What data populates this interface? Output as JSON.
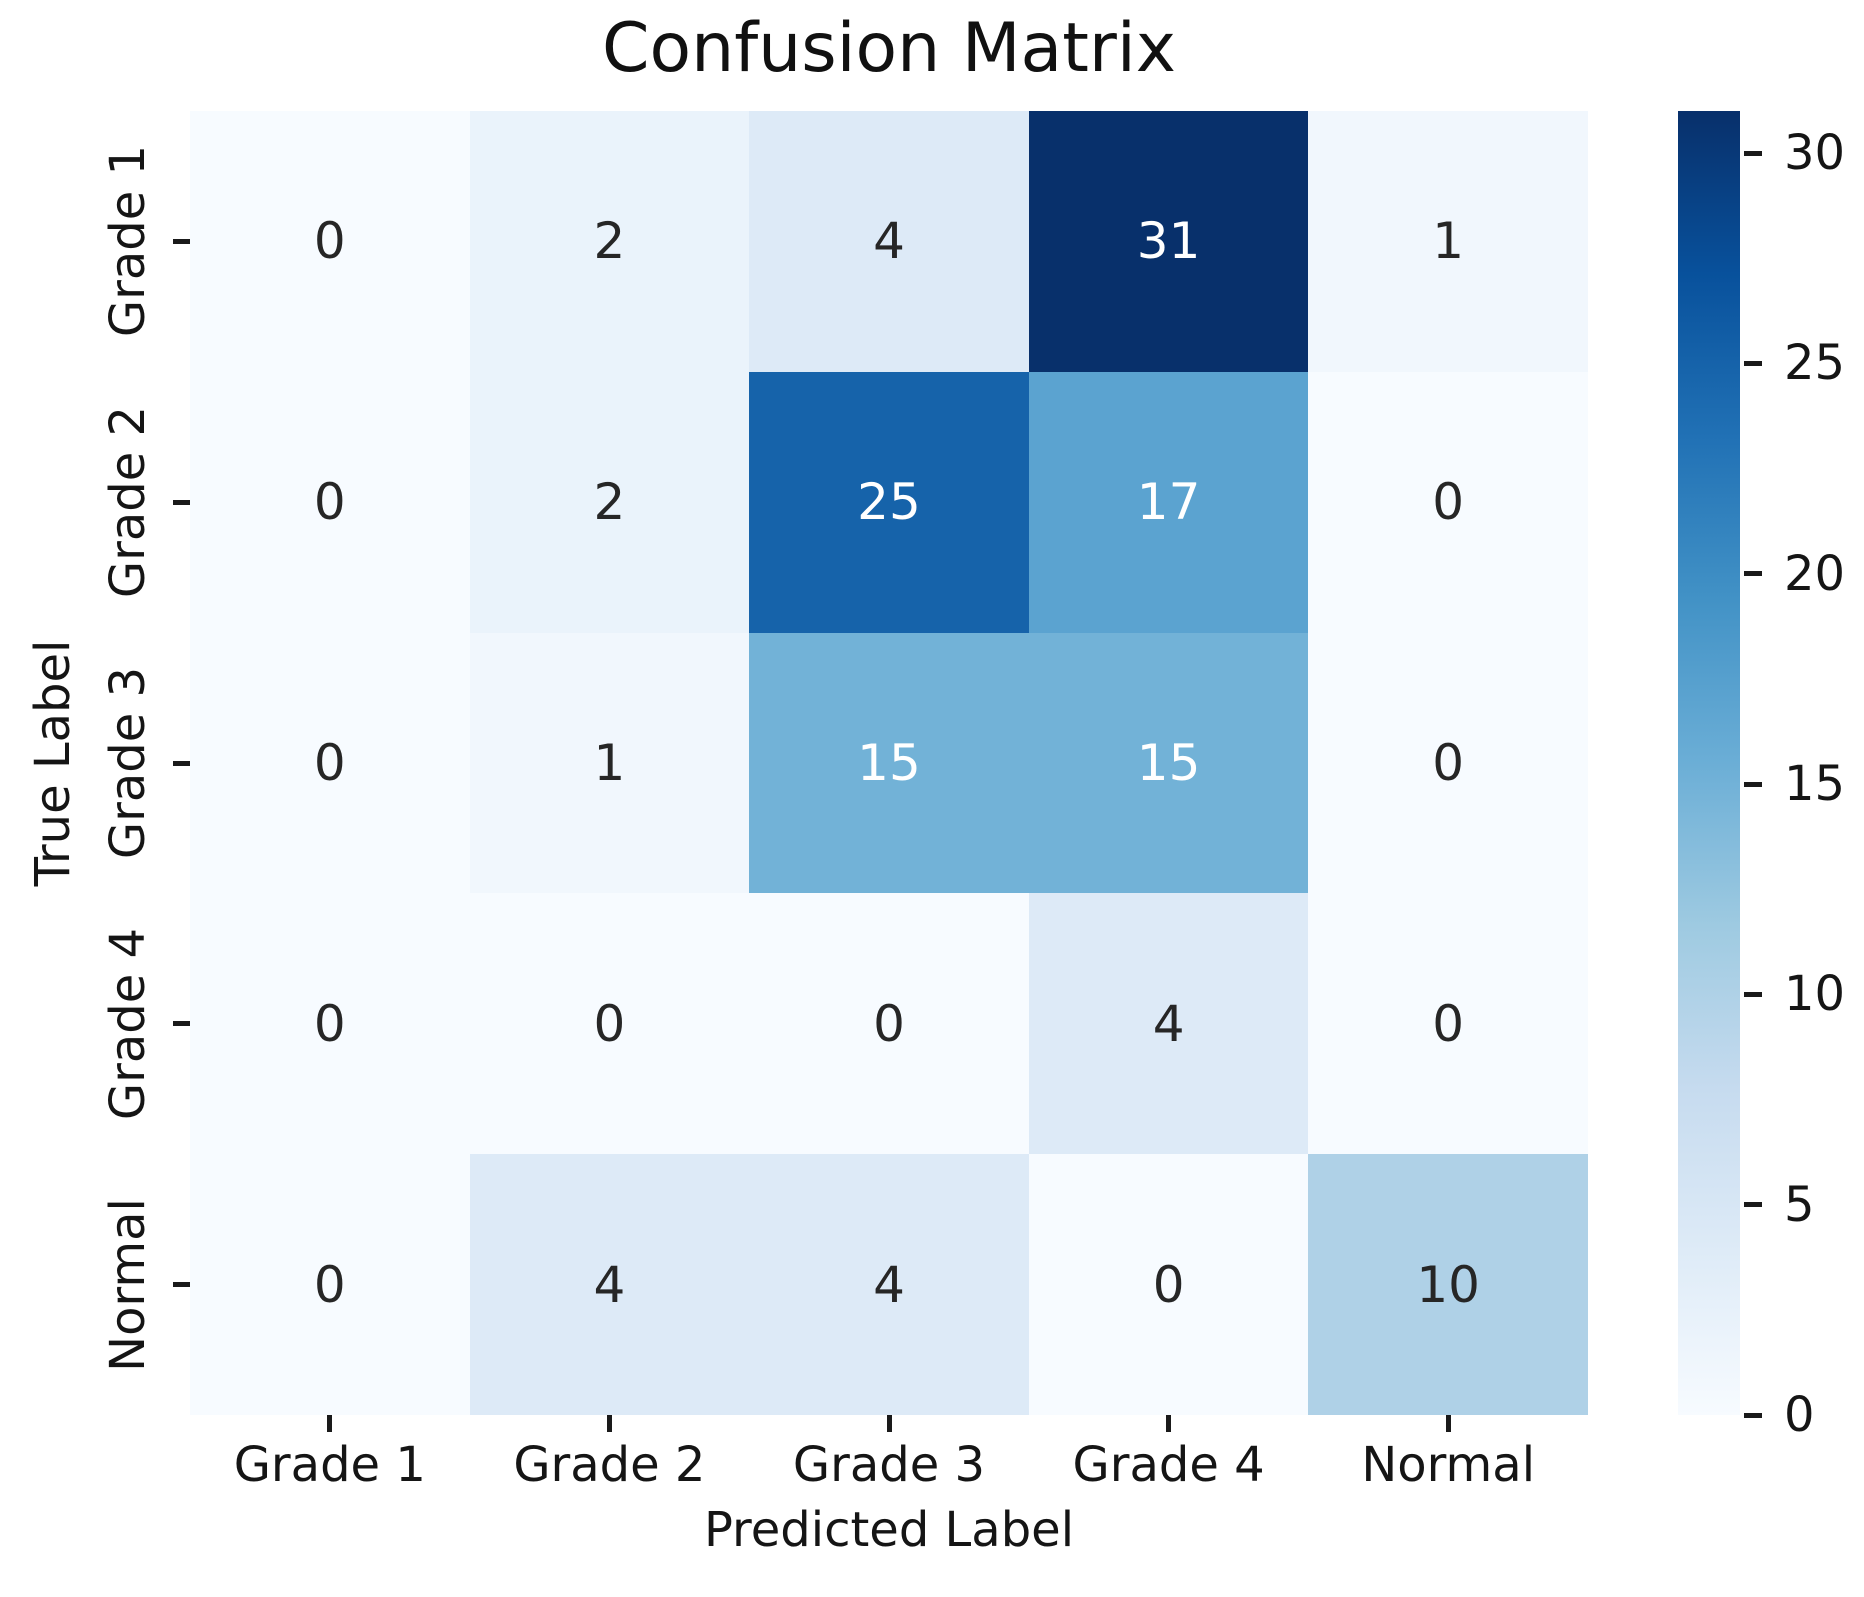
{
  "chart_data": {
    "type": "heatmap",
    "title": "Confusion Matrix",
    "xlabel": "Predicted Label",
    "ylabel": "True Label",
    "x_categories": [
      "Grade 1",
      "Grade 2",
      "Grade 3",
      "Grade 4",
      "Normal"
    ],
    "y_categories": [
      "Grade 1",
      "Grade 2",
      "Grade 3",
      "Grade 4",
      "Normal"
    ],
    "matrix": [
      [
        0,
        2,
        4,
        31,
        1
      ],
      [
        0,
        2,
        25,
        17,
        0
      ],
      [
        0,
        1,
        15,
        15,
        0
      ],
      [
        0,
        0,
        0,
        4,
        0
      ],
      [
        0,
        4,
        4,
        0,
        10
      ]
    ],
    "vmin": 0,
    "vmax": 31,
    "colormap": "Blues",
    "colorbar_ticks": [
      0,
      5,
      10,
      15,
      20,
      25,
      30
    ],
    "colorbar_position": "right",
    "grid": false,
    "legend_position": "none"
  },
  "colors": {
    "background": "#ffffff",
    "colormap_stops": [
      "#f7fbff",
      "#deebf7",
      "#c6dbef",
      "#9ecae1",
      "#6baed6",
      "#4292c6",
      "#2171b5",
      "#08519c",
      "#08306b"
    ],
    "annotation_dark": "#262626",
    "annotation_light": "#ffffff",
    "axis_text": "#151515",
    "tick_mark": "#1a1a1a"
  }
}
